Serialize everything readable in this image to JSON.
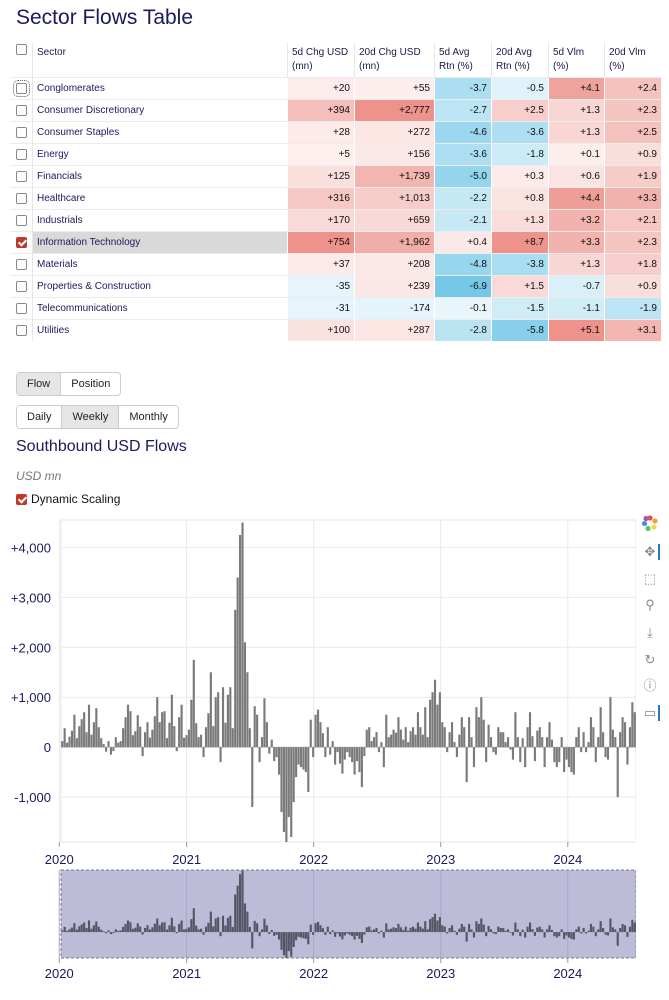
{
  "title": "Sector Flows Table",
  "table": {
    "headers": {
      "sector": "Sector",
      "c5d_usd": "5d Chg USD (mn)",
      "c20d_usd": "20d Chg USD (mn)",
      "r5d": "5d Avg Rtn (%)",
      "r20d": "20d Avg Rtn (%)",
      "v5d": "5d Vlm (%)",
      "v20d": "20d Vlm (%)"
    },
    "rows": [
      {
        "sector": "Conglomerates",
        "checked": false,
        "c5": "+20",
        "c20": "+55",
        "r5": "-3.7",
        "r20": "-0.5",
        "v5": "+4.1",
        "v20": "+2.4"
      },
      {
        "sector": "Consumer Discretionary",
        "checked": false,
        "c5": "+394",
        "c20": "+2,777",
        "r5": "-2.7",
        "r20": "+2.5",
        "v5": "+1.3",
        "v20": "+2.3"
      },
      {
        "sector": "Consumer Staples",
        "checked": false,
        "c5": "+28",
        "c20": "+272",
        "r5": "-4.6",
        "r20": "-3.6",
        "v5": "+1.3",
        "v20": "+2.5"
      },
      {
        "sector": "Energy",
        "checked": false,
        "c5": "+5",
        "c20": "+156",
        "r5": "-3.6",
        "r20": "-1.8",
        "v5": "+0.1",
        "v20": "+0.9"
      },
      {
        "sector": "Financials",
        "checked": false,
        "c5": "+125",
        "c20": "+1,739",
        "r5": "-5.0",
        "r20": "+0.3",
        "v5": "+0.6",
        "v20": "+1.9"
      },
      {
        "sector": "Healthcare",
        "checked": false,
        "c5": "+316",
        "c20": "+1,013",
        "r5": "-2.2",
        "r20": "+0.8",
        "v5": "+4.4",
        "v20": "+3.3"
      },
      {
        "sector": "Industrials",
        "checked": false,
        "c5": "+170",
        "c20": "+659",
        "r5": "-2.1",
        "r20": "+1.3",
        "v5": "+3.2",
        "v20": "+2.1"
      },
      {
        "sector": "Information Technology",
        "checked": true,
        "c5": "+754",
        "c20": "+1,962",
        "r5": "+0.4",
        "r20": "+8.7",
        "v5": "+3.3",
        "v20": "+2.3"
      },
      {
        "sector": "Materials",
        "checked": false,
        "c5": "+37",
        "c20": "+208",
        "r5": "-4.8",
        "r20": "-3.8",
        "v5": "+1.3",
        "v20": "+1.8"
      },
      {
        "sector": "Properties & Construction",
        "checked": false,
        "c5": "-35",
        "c20": "+239",
        "r5": "-6.9",
        "r20": "+1.5",
        "v5": "-0.7",
        "v20": "+0.9"
      },
      {
        "sector": "Telecommunications",
        "checked": false,
        "c5": "-31",
        "c20": "-174",
        "r5": "-0.1",
        "r20": "-1.5",
        "v5": "-1.1",
        "v20": "-1.9"
      },
      {
        "sector": "Utilities",
        "checked": false,
        "c5": "+100",
        "c20": "+287",
        "r5": "-2.8",
        "r20": "-5.8",
        "v5": "+5.1",
        "v20": "+3.1"
      }
    ]
  },
  "mode_buttons": {
    "flow": "Flow",
    "position": "Position",
    "active": "Flow"
  },
  "period_buttons": {
    "daily": "Daily",
    "weekly": "Weekly",
    "monthly": "Monthly",
    "active": "Weekly"
  },
  "chart_title": "Southbound USD Flows",
  "units_label": "USD mn",
  "dynamic_scaling": {
    "label": "Dynamic Scaling",
    "checked": true
  },
  "colors": {
    "bar": "#7a7a7a",
    "pos_strong": "#e8837a",
    "neg_strong": "#5bbfe0",
    "range_fill": "#bdbcd8",
    "accent": "#c0392b"
  },
  "chart_data": {
    "type": "bar",
    "x_start": "2020-01-06",
    "x_interval": "weekly",
    "x_ticks": [
      "2020",
      "2021",
      "2022",
      "2023",
      "2024"
    ],
    "y_ticks": [
      "+4,000",
      "+3,000",
      "+2,000",
      "+1,000",
      "0",
      "-1,000"
    ],
    "ylim": [
      -1900,
      4550
    ],
    "values": [
      120,
      380,
      90,
      210,
      330,
      650,
      180,
      420,
      560,
      700,
      300,
      850,
      250,
      500,
      780,
      400,
      180,
      60,
      -90,
      120,
      -150,
      -80,
      200,
      90,
      120,
      380,
      600,
      850,
      720,
      240,
      320,
      640,
      410,
      -180,
      300,
      500,
      190,
      350,
      620,
      1000,
      500,
      700,
      720,
      180,
      490,
      1050,
      420,
      -80,
      600,
      850,
      190,
      240,
      350,
      950,
      1750,
      480,
      200,
      250,
      -200,
      400,
      680,
      1500,
      420,
      1000,
      1100,
      -300,
      1200,
      490,
      1050,
      1200,
      380,
      2750,
      3400,
      4250,
      4500,
      2100,
      1500,
      380,
      -1200,
      820,
      650,
      -300,
      200,
      980,
      500,
      -130,
      150,
      -280,
      -200,
      -550,
      -1300,
      -1700,
      -1900,
      -1400,
      -1800,
      -1100,
      -600,
      -350,
      -400,
      -450,
      -500,
      -900,
      550,
      -200,
      650,
      750,
      500,
      280,
      -200,
      400,
      -150,
      120,
      -350,
      -100,
      -330,
      -530,
      -250,
      -100,
      -200,
      -300,
      -550,
      -280,
      -500,
      -800,
      -180,
      350,
      400,
      120,
      200,
      300,
      -100,
      100,
      -400,
      650,
      200,
      250,
      350,
      290,
      600,
      350,
      150,
      400,
      100,
      320,
      400,
      250,
      700,
      400,
      250,
      800,
      200,
      950,
      1100,
      1350,
      850,
      1100,
      500,
      400,
      -100,
      300,
      500,
      100,
      -200,
      250,
      600,
      400,
      -700,
      600,
      200,
      -400,
      800,
      600,
      1000,
      550,
      -300,
      450,
      200,
      -100,
      -150,
      400,
      300,
      300,
      100,
      200,
      -50,
      -250,
      700,
      200,
      -300,
      180,
      -400,
      400,
      700,
      220,
      -280,
      330,
      400,
      200,
      -400,
      200,
      500,
      150,
      -300,
      -400,
      -300,
      200,
      -500,
      -250,
      -400,
      -500,
      -550,
      200,
      400,
      -100,
      300,
      -100,
      100,
      600,
      400,
      -300,
      200,
      800,
      300,
      -200,
      -250,
      1000,
      350,
      200,
      -1000,
      300,
      600,
      500,
      -350,
      400,
      900,
      700
    ]
  }
}
